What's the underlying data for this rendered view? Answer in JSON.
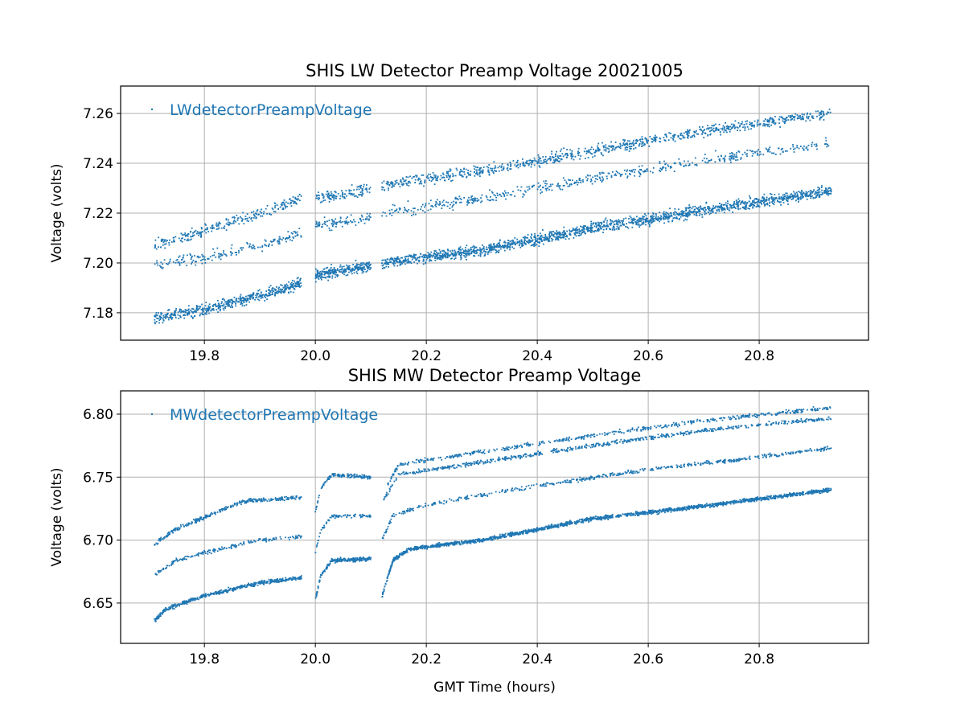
{
  "chart_data": [
    {
      "type": "scatter",
      "title": "SHIS LW Detector Preamp Voltage 20021005",
      "xlabel": "",
      "ylabel": "Voltage (volts)",
      "xlim": [
        19.649,
        20.997
      ],
      "ylim": [
        7.169,
        7.271
      ],
      "xticks": [
        19.8,
        20.0,
        20.2,
        20.4,
        20.6,
        20.8
      ],
      "xtick_labels": [
        "19.8",
        "20.0",
        "20.2",
        "20.4",
        "20.6",
        "20.8"
      ],
      "yticks": [
        7.18,
        7.2,
        7.22,
        7.24,
        7.26
      ],
      "ytick_labels": [
        "7.18",
        "7.20",
        "7.22",
        "7.24",
        "7.26"
      ],
      "grid": true,
      "legend": {
        "entries": [
          "LWdetectorPreampVoltage"
        ],
        "placement": "top-left"
      },
      "color": "#1f77b4",
      "noise": 0.0022,
      "series": [
        {
          "name": "LWdetectorPreampVoltage",
          "bands": [
            {
              "path": [
                [
                  19.71,
                  7.178
                ],
                [
                  19.8,
                  7.181
                ],
                [
                  19.9,
                  7.187
                ],
                [
                  19.975,
                  7.192
                ]
              ],
              "n": 520
            },
            {
              "path": [
                [
                  19.71,
                  7.199
                ],
                [
                  19.8,
                  7.202
                ],
                [
                  19.9,
                  7.207
                ],
                [
                  19.975,
                  7.212
                ]
              ],
              "n": 180
            },
            {
              "path": [
                [
                  19.71,
                  7.207
                ],
                [
                  19.8,
                  7.213
                ],
                [
                  19.9,
                  7.22
                ],
                [
                  19.975,
                  7.226
                ]
              ],
              "n": 260
            },
            {
              "path": [
                [
                  20.0,
                  7.195
                ],
                [
                  20.1,
                  7.199
                ]
              ],
              "n": 260
            },
            {
              "path": [
                [
                  20.0,
                  7.215
                ],
                [
                  20.1,
                  7.218
                ]
              ],
              "n": 90
            },
            {
              "path": [
                [
                  20.0,
                  7.226
                ],
                [
                  20.1,
                  7.23
                ]
              ],
              "n": 120
            },
            {
              "path": [
                [
                  20.12,
                  7.2
                ],
                [
                  20.3,
                  7.205
                ],
                [
                  20.5,
                  7.214
                ],
                [
                  20.7,
                  7.221
                ],
                [
                  20.93,
                  7.229
                ]
              ],
              "n": 1700
            },
            {
              "path": [
                [
                  20.12,
                  7.22
                ],
                [
                  20.3,
                  7.226
                ],
                [
                  20.5,
                  7.234
                ],
                [
                  20.7,
                  7.241
                ],
                [
                  20.93,
                  7.248
                ]
              ],
              "n": 500
            },
            {
              "path": [
                [
                  20.12,
                  7.231
                ],
                [
                  20.3,
                  7.237
                ],
                [
                  20.5,
                  7.245
                ],
                [
                  20.7,
                  7.253
                ],
                [
                  20.93,
                  7.26
                ]
              ],
              "n": 900
            }
          ]
        }
      ]
    },
    {
      "type": "scatter",
      "title": "SHIS MW Detector Preamp Voltage",
      "xlabel": "GMT Time (hours)",
      "ylabel": "Voltage (volts)",
      "xlim": [
        19.649,
        20.997
      ],
      "ylim": [
        6.618,
        6.8185
      ],
      "xticks": [
        19.8,
        20.0,
        20.2,
        20.4,
        20.6,
        20.8
      ],
      "xtick_labels": [
        "19.8",
        "20.0",
        "20.2",
        "20.4",
        "20.6",
        "20.8"
      ],
      "yticks": [
        6.65,
        6.7,
        6.75,
        6.8
      ],
      "ytick_labels": [
        "6.65",
        "6.70",
        "6.75",
        "6.80"
      ],
      "grid": true,
      "legend": {
        "entries": [
          "MWdetectorPreampVoltage"
        ],
        "placement": "top-left"
      },
      "color": "#1f77b4",
      "noise": 0.0015,
      "series": [
        {
          "name": "MWdetectorPreampVoltage",
          "bands": [
            {
              "path": [
                [
                  19.71,
                  6.636
                ],
                [
                  19.73,
                  6.645
                ],
                [
                  19.8,
                  6.656
                ],
                [
                  19.9,
                  6.666
                ],
                [
                  19.975,
                  6.67
                ]
              ],
              "n": 520
            },
            {
              "path": [
                [
                  19.71,
                  6.672
                ],
                [
                  19.75,
                  6.684
                ],
                [
                  19.8,
                  6.69
                ],
                [
                  19.9,
                  6.7
                ],
                [
                  19.975,
                  6.703
                ]
              ],
              "n": 180
            },
            {
              "path": [
                [
                  19.71,
                  6.697
                ],
                [
                  19.75,
                  6.709
                ],
                [
                  19.8,
                  6.718
                ],
                [
                  19.87,
                  6.731
                ],
                [
                  19.975,
                  6.734
                ]
              ],
              "n": 300
            },
            {
              "path": [
                [
                  20.0,
                  6.652
                ],
                [
                  20.01,
                  6.672
                ],
                [
                  20.03,
                  6.684
                ],
                [
                  20.1,
                  6.685
                ]
              ],
              "n": 220
            },
            {
              "path": [
                [
                  20.0,
                  6.69
                ],
                [
                  20.01,
                  6.708
                ],
                [
                  20.03,
                  6.719
                ],
                [
                  20.1,
                  6.719
                ]
              ],
              "n": 90
            },
            {
              "path": [
                [
                  20.0,
                  6.722
                ],
                [
                  20.01,
                  6.742
                ],
                [
                  20.03,
                  6.752
                ],
                [
                  20.1,
                  6.75
                ]
              ],
              "n": 140
            },
            {
              "path": [
                [
                  20.12,
                  6.655
                ],
                [
                  20.14,
                  6.684
                ],
                [
                  20.17,
                  6.693
                ],
                [
                  20.3,
                  6.7
                ],
                [
                  20.5,
                  6.717
                ],
                [
                  20.7,
                  6.727
                ],
                [
                  20.93,
                  6.74
                ]
              ],
              "n": 1700
            },
            {
              "path": [
                [
                  20.12,
                  6.7
                ],
                [
                  20.14,
                  6.72
                ],
                [
                  20.2,
                  6.728
                ],
                [
                  20.4,
                  6.743
                ],
                [
                  20.6,
                  6.756
                ],
                [
                  20.8,
                  6.766
                ],
                [
                  20.93,
                  6.773
                ]
              ],
              "n": 500
            },
            {
              "path": [
                [
                  20.12,
                  6.73
                ],
                [
                  20.15,
                  6.752
                ],
                [
                  20.3,
                  6.762
                ],
                [
                  20.5,
                  6.775
                ],
                [
                  20.7,
                  6.787
                ],
                [
                  20.93,
                  6.797
                ]
              ],
              "n": 600
            },
            {
              "path": [
                [
                  20.12,
                  6.735
                ],
                [
                  20.15,
                  6.76
                ],
                [
                  20.3,
                  6.77
                ],
                [
                  20.5,
                  6.783
                ],
                [
                  20.7,
                  6.795
                ],
                [
                  20.93,
                  6.805
                ]
              ],
              "n": 500
            }
          ]
        }
      ]
    }
  ]
}
